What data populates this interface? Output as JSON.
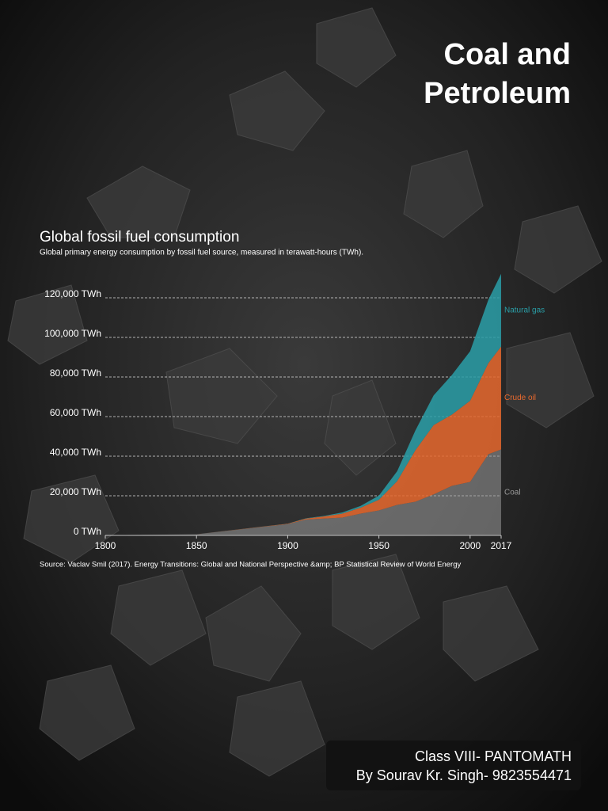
{
  "poster": {
    "title_lines": [
      "Coal and",
      "Petroleum"
    ],
    "footer_lines": [
      "Class VIII- PANTOMATH",
      "By Sourav Kr. Singh- 9823554471"
    ]
  },
  "chart_data": {
    "type": "area",
    "stacked": true,
    "title": "Global fossil fuel consumption",
    "subtitle": "Global primary energy consumption by fossil fuel source, measured in terawatt-hours (TWh).",
    "source": "Source: Vaclav Smil (2017). Energy Transitions: Global and National Perspective &amp; BP Statistical Review of World Energy",
    "x": [
      1800,
      1850,
      1900,
      1910,
      1920,
      1930,
      1940,
      1950,
      1960,
      1970,
      1980,
      1990,
      2000,
      2010,
      2017
    ],
    "series": [
      {
        "name": "Coal",
        "color": "#9a9a9a",
        "values": [
          97,
          570,
          5700,
          8000,
          8500,
          9000,
          11000,
          12600,
          15400,
          17000,
          20700,
          25000,
          27000,
          41000,
          43400
        ]
      },
      {
        "name": "Crude oil",
        "color": "#e8692e",
        "values": [
          0,
          0,
          180,
          500,
          1100,
          2000,
          3000,
          5400,
          12000,
          26000,
          35000,
          36000,
          41000,
          46000,
          52000
        ]
      },
      {
        "name": "Natural gas",
        "color": "#2a9fa8",
        "values": [
          0,
          0,
          60,
          170,
          250,
          600,
          900,
          2100,
          5000,
          10000,
          15000,
          20000,
          25000,
          32000,
          36700
        ]
      }
    ],
    "xlim": [
      1800,
      2017
    ],
    "xticks": [
      1800,
      1850,
      1900,
      1950,
      2000,
      2017
    ],
    "ylim": [
      0,
      135000
    ],
    "yticks": [
      {
        "value": 0,
        "label": "0 TWh"
      },
      {
        "value": 20000,
        "label": "20,000 TWh"
      },
      {
        "value": 40000,
        "label": "40,000 TWh"
      },
      {
        "value": 60000,
        "label": "60,000 TWh"
      },
      {
        "value": 80000,
        "label": "80,000 TWh"
      },
      {
        "value": 100000,
        "label": "100,000 TWh"
      },
      {
        "value": 120000,
        "label": "120,000 TWh"
      }
    ],
    "grid": true
  }
}
